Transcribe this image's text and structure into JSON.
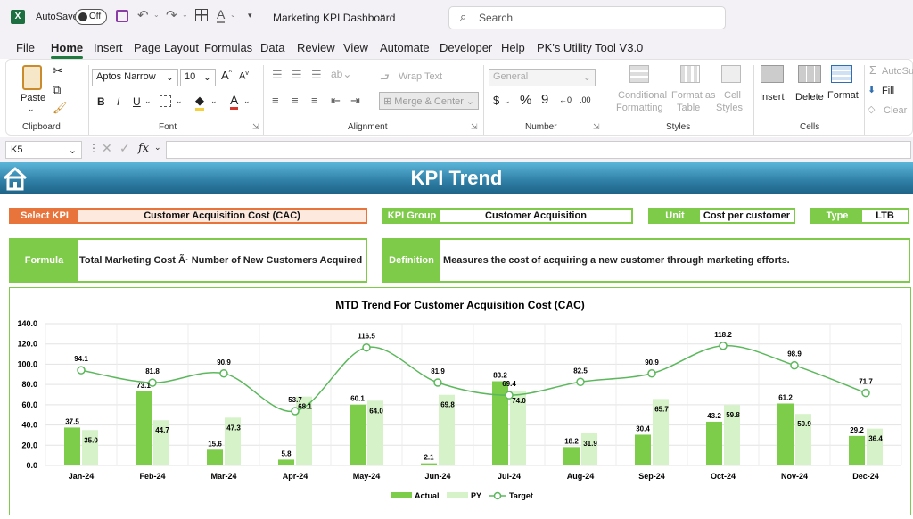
{
  "titlebar": {
    "autosave_label": "AutoSave",
    "autosave_state": "Off",
    "doc_title": "Marketing KPI Dashboard",
    "search_placeholder": "Search"
  },
  "ribbon_tabs": [
    "File",
    "Home",
    "Insert",
    "Page Layout",
    "Formulas",
    "Data",
    "Review",
    "View",
    "Automate",
    "Developer",
    "Help",
    "PK's Utility Tool V3.0"
  ],
  "active_tab": "Home",
  "ribbon": {
    "clipboard": {
      "paste": "Paste",
      "label": "Clipboard"
    },
    "font": {
      "name": "Aptos Narrow",
      "size": "10",
      "label": "Font"
    },
    "alignment": {
      "wrap": "Wrap Text",
      "merge": "Merge & Center",
      "label": "Alignment"
    },
    "number": {
      "format": "General",
      "label": "Number"
    },
    "styles": {
      "cond": "Conditional",
      "cond2": "Formatting",
      "fmt": "Format as",
      "fmt2": "Table",
      "cell": "Cell",
      "cell2": "Styles",
      "label": "Styles"
    },
    "cells": {
      "insert": "Insert",
      "delete": "Delete",
      "format": "Format",
      "label": "Cells"
    },
    "editing": {
      "autosum": "AutoSum",
      "fill": "Fill",
      "clear": "Clear"
    }
  },
  "formula_bar": {
    "cell_ref": "K5",
    "fx": "fx",
    "content": ""
  },
  "sheet": {
    "banner_title": "KPI Trend",
    "select_kpi_label": "Select KPI",
    "select_kpi_value": "Customer Acquisition Cost (CAC)",
    "kpi_group_label": "KPI Group",
    "kpi_group_value": "Customer Acquisition",
    "unit_label": "Unit",
    "unit_value": "Cost per customer",
    "type_label": "Type",
    "type_value": "LTB",
    "formula_label": "Formula",
    "formula_value": "Total Marketing Cost Ã· Number of New Customers Acquired",
    "definition_label": "Definition",
    "definition_value": "Measures the cost of acquiring a new customer through marketing efforts."
  },
  "colors": {
    "actual": "#7dcd4a",
    "py": "#d6f2c8",
    "target": "#5cb85c",
    "accent_orange": "#e8743b",
    "accent_green": "#7ecb4a",
    "banner": "#2f7fa6"
  },
  "chart_data": {
    "type": "bar",
    "title": "MTD Trend For Customer Acquisition Cost (CAC)",
    "categories": [
      "Jan-24",
      "Feb-24",
      "Mar-24",
      "Apr-24",
      "May-24",
      "Jun-24",
      "Jul-24",
      "Aug-24",
      "Sep-24",
      "Oct-24",
      "Nov-24",
      "Dec-24"
    ],
    "series": [
      {
        "name": "Actual",
        "kind": "bar",
        "values": [
          37.5,
          73.1,
          15.6,
          5.8,
          60.1,
          2.1,
          83.2,
          18.2,
          30.4,
          43.2,
          61.2,
          29.2
        ]
      },
      {
        "name": "PY",
        "kind": "bar",
        "values": [
          35.0,
          44.7,
          47.3,
          68.1,
          64.0,
          69.8,
          74.0,
          31.9,
          65.7,
          59.8,
          50.9,
          36.4
        ]
      },
      {
        "name": "Target",
        "kind": "line",
        "values": [
          94.1,
          81.8,
          90.9,
          53.7,
          116.5,
          81.9,
          69.4,
          82.5,
          90.9,
          118.2,
          98.9,
          71.7
        ]
      }
    ],
    "yticks": [
      "0.0",
      "20.0",
      "40.0",
      "60.0",
      "80.0",
      "100.0",
      "120.0",
      "140.0"
    ],
    "ylim": [
      0,
      140
    ],
    "grid": true,
    "legend": "bottom"
  }
}
